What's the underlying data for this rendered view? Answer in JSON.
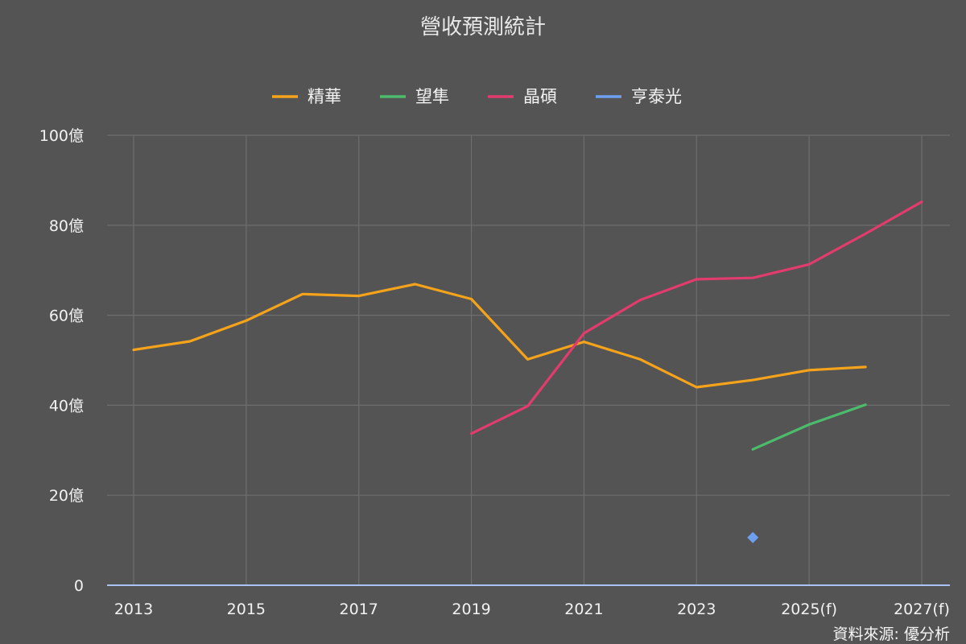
{
  "chart_data": {
    "type": "line",
    "title": "營收預測統計",
    "source": "資料來源: 優分析",
    "x": [
      2013,
      2014,
      2015,
      2016,
      2017,
      2018,
      2019,
      2020,
      2021,
      2022,
      2023,
      2024,
      2025,
      2026,
      2027
    ],
    "xticks": [
      {
        "value": 2013,
        "label": "2013"
      },
      {
        "value": 2015,
        "label": "2015"
      },
      {
        "value": 2017,
        "label": "2017"
      },
      {
        "value": 2019,
        "label": "2019"
      },
      {
        "value": 2021,
        "label": "2021"
      },
      {
        "value": 2023,
        "label": "2023"
      },
      {
        "value": 2025,
        "label": "2025(f)"
      },
      {
        "value": 2027,
        "label": "2027(f)"
      }
    ],
    "yticks": [
      {
        "value": 0,
        "label": "0"
      },
      {
        "value": 20,
        "label": "20億"
      },
      {
        "value": 40,
        "label": "40億"
      },
      {
        "value": 60,
        "label": "60億"
      },
      {
        "value": 80,
        "label": "80億"
      },
      {
        "value": 100,
        "label": "100億"
      }
    ],
    "xlim": [
      2013,
      2027
    ],
    "ylim": [
      0,
      100
    ],
    "grid": true,
    "legend_position": "top-center",
    "series": [
      {
        "name": "精華",
        "color": "#f5a31a",
        "points": [
          [
            2013,
            52.3
          ],
          [
            2014,
            54.2
          ],
          [
            2015,
            58.8
          ],
          [
            2016,
            64.7
          ],
          [
            2017,
            64.3
          ],
          [
            2018,
            66.9
          ],
          [
            2019,
            63.6
          ],
          [
            2020,
            50.2
          ],
          [
            2021,
            54.1
          ],
          [
            2022,
            50.2
          ],
          [
            2023,
            44.0
          ],
          [
            2024,
            45.6
          ],
          [
            2025,
            47.8
          ],
          [
            2026,
            48.5
          ]
        ]
      },
      {
        "name": "望隼",
        "color": "#4cbb6c",
        "points": [
          [
            2024,
            30.2
          ],
          [
            2025,
            35.7
          ],
          [
            2026,
            40.1
          ]
        ]
      },
      {
        "name": "晶碩",
        "color": "#e23b6e",
        "points": [
          [
            2019,
            33.7
          ],
          [
            2020,
            39.8
          ],
          [
            2021,
            56.0
          ],
          [
            2022,
            63.4
          ],
          [
            2023,
            68.0
          ],
          [
            2024,
            68.3
          ],
          [
            2025,
            71.3
          ],
          [
            2026,
            78.1
          ],
          [
            2027,
            85.2
          ]
        ]
      },
      {
        "name": "亨泰光",
        "color": "#6f9ff0",
        "marker": "diamond",
        "points": [
          [
            2024,
            10.6
          ]
        ]
      }
    ]
  }
}
